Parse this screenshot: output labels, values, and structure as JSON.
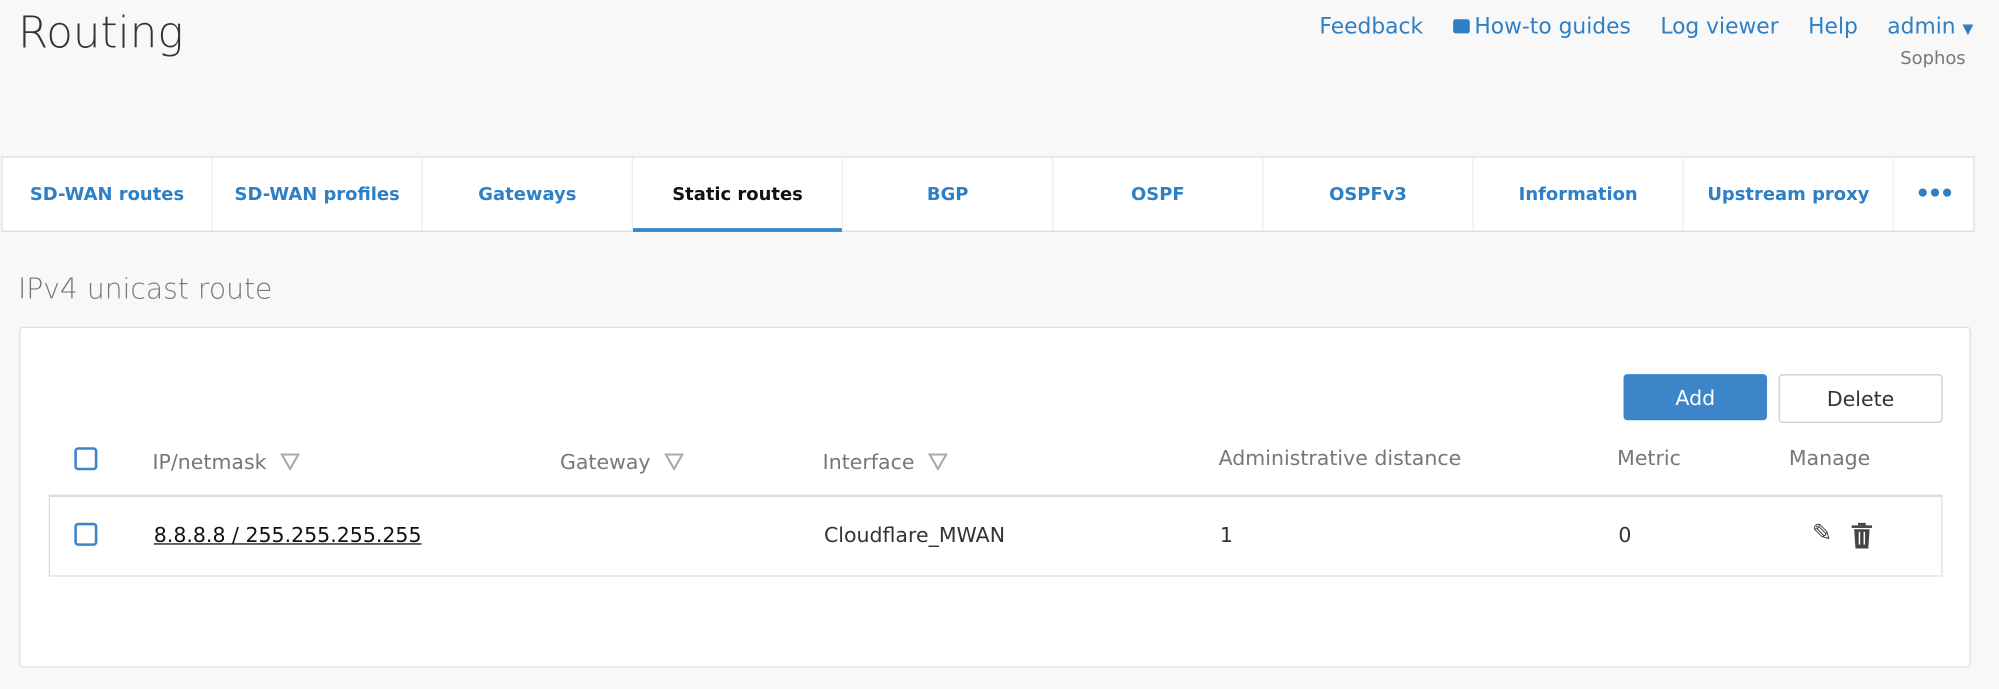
{
  "header": {
    "title": "Routing",
    "links": [
      "Feedback",
      "How-to guides",
      "Log viewer",
      "Help",
      "admin"
    ],
    "org": "Sophos"
  },
  "tabs": [
    {
      "label": "SD-WAN routes"
    },
    {
      "label": "SD-WAN profiles"
    },
    {
      "label": "Gateways"
    },
    {
      "label": "Static routes",
      "active": true
    },
    {
      "label": "BGP"
    },
    {
      "label": "OSPF"
    },
    {
      "label": "OSPFv3"
    },
    {
      "label": "Information"
    },
    {
      "label": "Upstream proxy"
    },
    {
      "label": "•••"
    }
  ],
  "section": {
    "title": "IPv4 unicast route"
  },
  "toolbar": {
    "add": "Add",
    "delete": "Delete"
  },
  "table": {
    "headers": [
      "IP/netmask",
      "Gateway",
      "Interface",
      "Administrative distance",
      "Metric",
      "Manage"
    ],
    "rows": [
      {
        "ip_netmask": "8.8.8.8 / 255.255.255.255",
        "gateway": "",
        "interface": "Cloudflare_MWAN",
        "admin_distance": "1",
        "metric": "0"
      }
    ]
  },
  "colors": {
    "accent": "#3b85c8",
    "link": "#2f7fc4"
  }
}
